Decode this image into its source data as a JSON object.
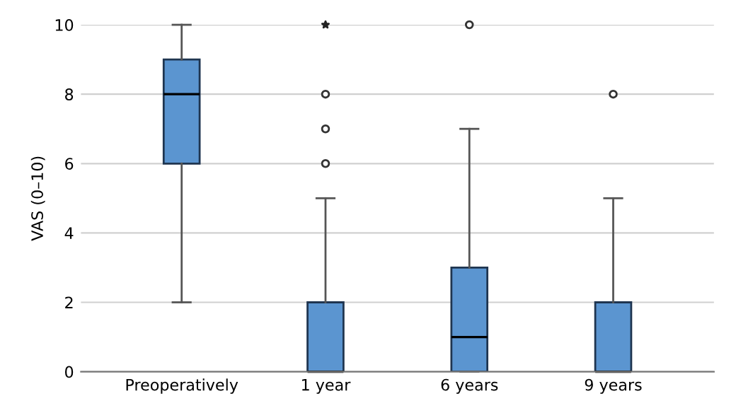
{
  "chart_data": {
    "type": "box",
    "ylabel": "VAS (0–10)",
    "categories": [
      "Preoperatively",
      "1 year",
      "6 years",
      "9 years"
    ],
    "boxes": [
      {
        "low": 2,
        "q1": 6,
        "median": 8,
        "q3": 9,
        "high": 10
      },
      {
        "low": 0,
        "q1": 0,
        "median": 0,
        "q3": 2,
        "high": 5,
        "outliers": [
          6,
          7,
          8
        ]
      },
      {
        "low": 0,
        "q1": 0,
        "median": 1,
        "q3": 3,
        "high": 7,
        "outliers": [
          10
        ]
      },
      {
        "low": 0,
        "q1": 0,
        "median": 0,
        "q3": 2,
        "high": 5,
        "outliers": [
          8
        ]
      }
    ],
    "color": "#5b95d0",
    "series": [
      {
        "type": "scatter",
        "x": [
          "1 year"
        ],
        "values": [
          10
        ],
        "marker": "star",
        "color": "#222222"
      }
    ],
    "ylim": [
      0,
      10
    ],
    "yticks": [
      0,
      2,
      4,
      6,
      8,
      10
    ],
    "grid": "y"
  }
}
